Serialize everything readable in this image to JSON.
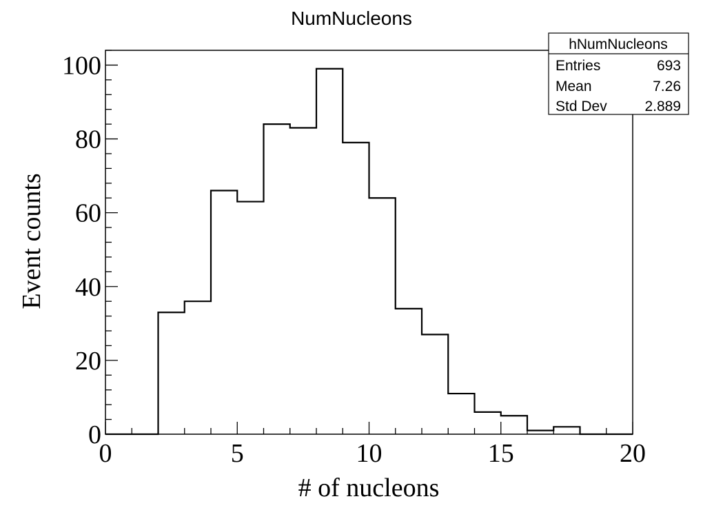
{
  "chart_data": {
    "type": "bar",
    "title": "NumNucleons",
    "xlabel": "# of nucleons",
    "ylabel": "Event counts",
    "xlim": [
      0,
      20
    ],
    "ylim": [
      0,
      104
    ],
    "x_ticks": [
      0,
      5,
      10,
      15,
      20
    ],
    "y_ticks": [
      0,
      20,
      40,
      60,
      80,
      100
    ],
    "bin_edges": [
      0,
      1,
      2,
      3,
      4,
      5,
      6,
      7,
      8,
      9,
      10,
      11,
      12,
      13,
      14,
      15,
      16,
      17,
      18,
      19,
      20
    ],
    "values": [
      0,
      0,
      33,
      36,
      66,
      63,
      84,
      83,
      99,
      79,
      64,
      34,
      27,
      11,
      6,
      5,
      1,
      2,
      0,
      0
    ],
    "grid": false,
    "legend": "none",
    "stats_box": {
      "name": "hNumNucleons",
      "rows": [
        {
          "label": "Entries",
          "value": "693"
        },
        {
          "label": "Mean",
          "value": "7.26"
        },
        {
          "label": "Std Dev",
          "value": "2.889"
        }
      ],
      "placement": "top-right"
    }
  }
}
